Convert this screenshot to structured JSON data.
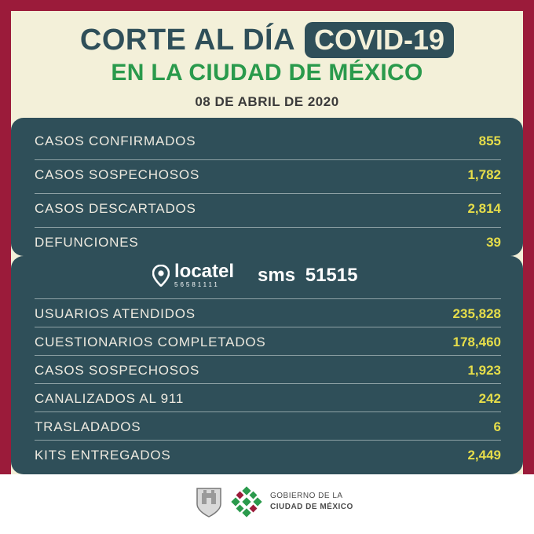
{
  "header": {
    "title": "CORTE AL DÍA",
    "badge": "COVID-19",
    "subtitle": "EN LA CIUDAD DE MÉXICO",
    "date": "08 DE ABRIL DE 2020"
  },
  "cases": [
    {
      "label": "CASOS CONFIRMADOS",
      "value": "855"
    },
    {
      "label": "CASOS SOSPECHOSOS",
      "value": "1,782"
    },
    {
      "label": "CASOS DESCARTADOS",
      "value": "2,814"
    },
    {
      "label": "DEFUNCIONES",
      "value": "39"
    }
  ],
  "locatel": {
    "name": "locatel",
    "phone": "56581111",
    "sms": "sms 51515",
    "icon": "location-pin-icon"
  },
  "locatel_stats": [
    {
      "label": "USUARIOS ATENDIDOS",
      "value": "235,828"
    },
    {
      "label": "CUESTIONARIOS COMPLETADOS",
      "value": "178,460"
    },
    {
      "label": "CASOS SOSPECHOSOS",
      "value": "1,923"
    },
    {
      "label": "CANALIZADOS AL 911",
      "value": "242"
    },
    {
      "label": "TRASLADADOS",
      "value": "6"
    },
    {
      "label": "KITS ENTREGADOS",
      "value": "2,449"
    }
  ],
  "footer": {
    "gov_line1": "GOBIERNO DE LA",
    "gov_line2": "CIUDAD DE MÉXICO",
    "icons": [
      "coat-of-arms-icon",
      "cdmx-logo-icon"
    ]
  },
  "colors": {
    "border": "#9b1b3a",
    "background": "#f3f0d9",
    "panel": "#2f4f59",
    "accent_green": "#2a9a4c",
    "value_yellow": "#e6dd4a"
  }
}
